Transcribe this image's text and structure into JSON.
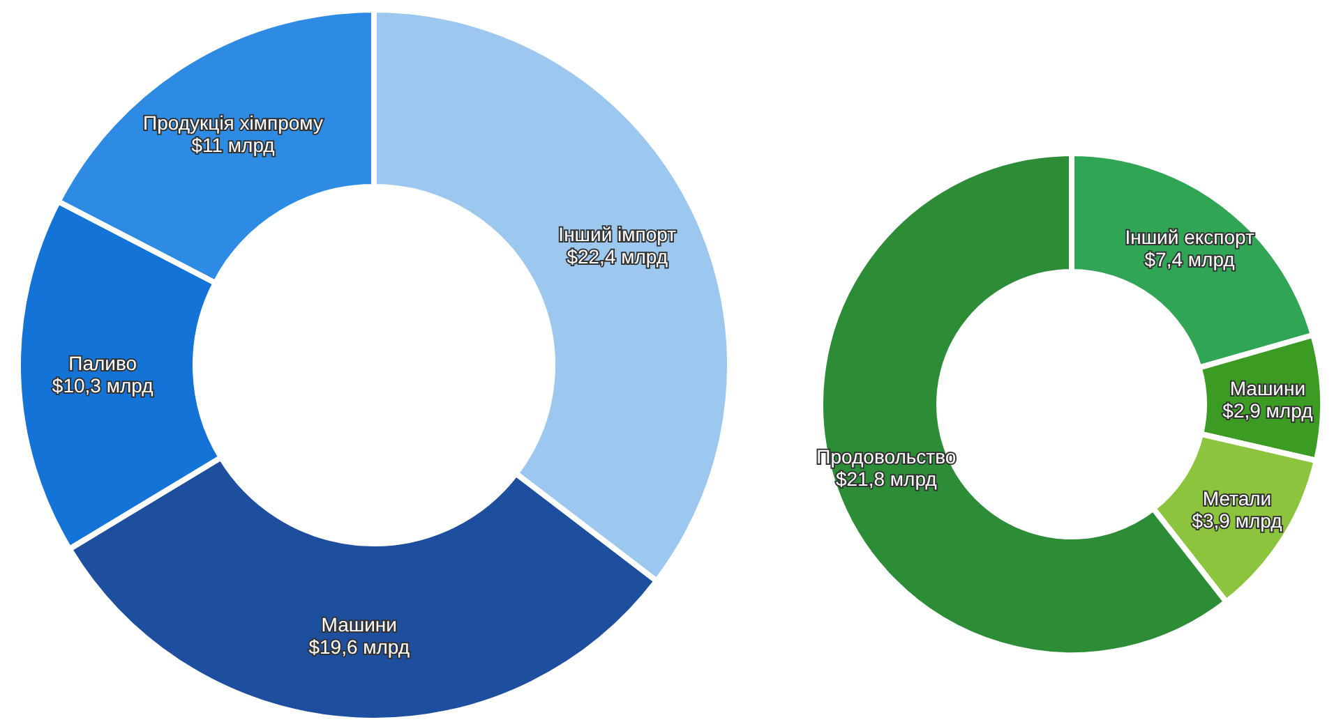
{
  "chart_data": [
    {
      "type": "donut",
      "categories": [
        "Інший імпорт",
        "Машини",
        "Паливо",
        "Продукція хімпрому"
      ],
      "values": [
        22.4,
        19.6,
        10.3,
        11
      ],
      "value_labels": [
        "$22,4 млрд",
        "$19,6 млрд",
        "$10,3 млрд",
        "$11 млрд"
      ],
      "colors": [
        "#9cc7ef",
        "#1d4f9e",
        "#1473d6",
        "#2d8be3"
      ]
    },
    {
      "type": "donut",
      "categories": [
        "Інший експорт",
        "Машини",
        "Метали",
        "Продовольство"
      ],
      "values": [
        7.4,
        2.9,
        3.9,
        21.8
      ],
      "value_labels": [
        "$7,4 млрд",
        "$2,9 млрд",
        "$3,9 млрд",
        "$21,8 млрд"
      ],
      "colors": [
        "#31a556",
        "#3c9b22",
        "#8cc43d",
        "#2d8d37"
      ]
    }
  ]
}
